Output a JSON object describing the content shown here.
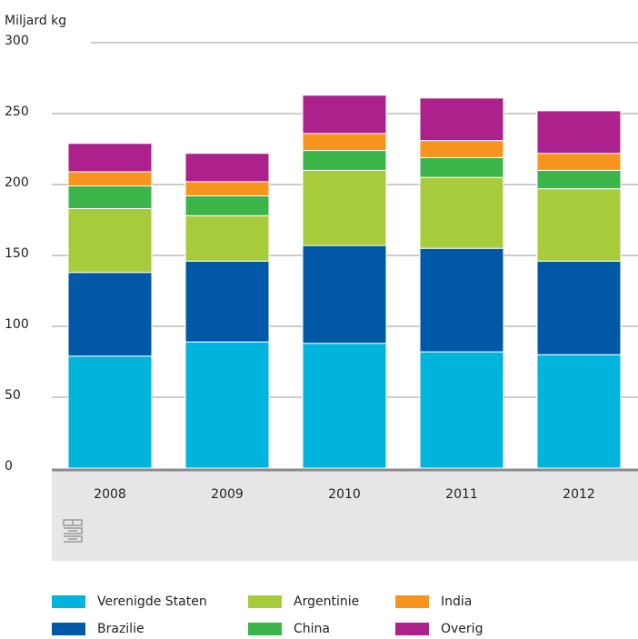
{
  "chart_data": {
    "type": "stacked_bar",
    "y_axis_label": "Miljard kg",
    "categories": [
      "2008",
      "2009",
      "2010",
      "2011",
      "2012"
    ],
    "series": [
      {
        "name": "Verenigde Staten",
        "color": "#00b4dc",
        "values": [
          79,
          89,
          88,
          82,
          80
        ]
      },
      {
        "name": "Brazilie",
        "color": "#0058a6",
        "values": [
          59,
          57,
          69,
          73,
          66
        ]
      },
      {
        "name": "Argentinie",
        "color": "#a8cb3c",
        "values": [
          45,
          32,
          53,
          50,
          51
        ]
      },
      {
        "name": "China",
        "color": "#3bb44a",
        "values": [
          16,
          14,
          14,
          14,
          13
        ]
      },
      {
        "name": "India",
        "color": "#f7941d",
        "values": [
          10,
          10,
          12,
          12,
          12
        ]
      },
      {
        "name": "Overig",
        "color": "#ac218c",
        "values": [
          20,
          20,
          27,
          30,
          30
        ]
      }
    ],
    "ylim": [
      0,
      300
    ],
    "yticks": [
      0,
      50,
      100,
      150,
      200,
      250,
      300
    ],
    "grid": true
  }
}
